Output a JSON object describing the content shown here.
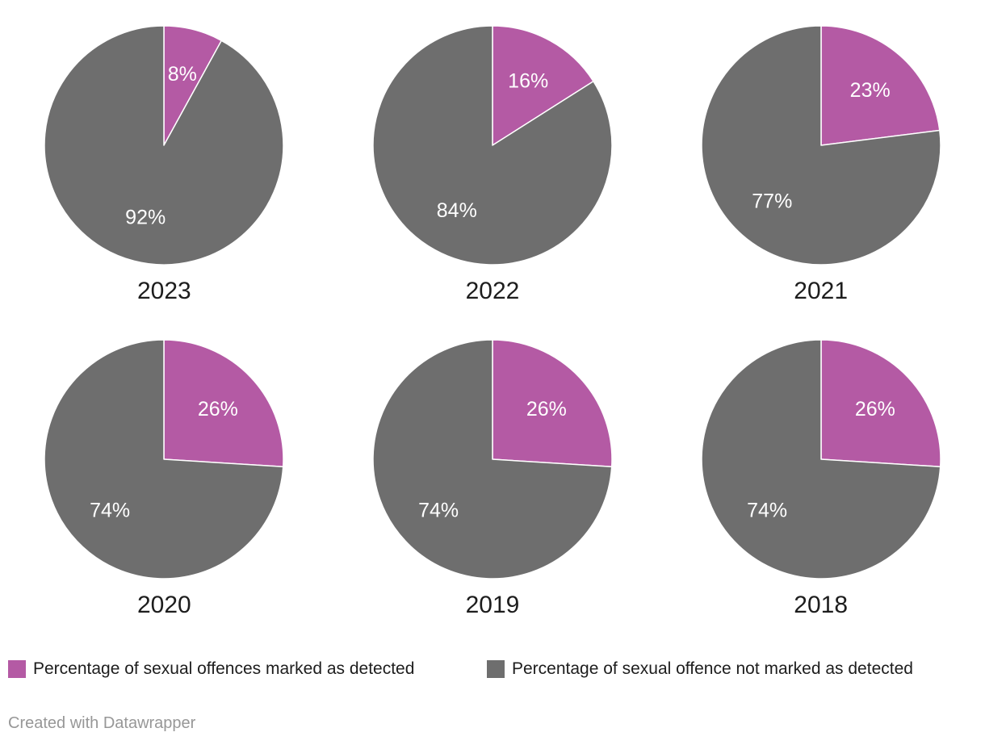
{
  "chart_data": {
    "type": "pie",
    "title": "",
    "layout": "small multiples, 3 columns x 2 rows",
    "slice_start": "12 o'clock, clockwise, detected slice first",
    "series": [
      {
        "name": "Percentage of sexual offences marked as detected",
        "color": "#b45aa4"
      },
      {
        "name": "Percentage of sexual offence not marked as detected",
        "color": "#6e6e6e"
      }
    ],
    "pies": [
      {
        "label": "2023",
        "values": [
          8,
          92
        ],
        "data_labels": [
          "8%",
          "92%"
        ]
      },
      {
        "label": "2022",
        "values": [
          16,
          84
        ],
        "data_labels": [
          "16%",
          "84%"
        ]
      },
      {
        "label": "2021",
        "values": [
          23,
          77
        ],
        "data_labels": [
          "23%",
          "77%"
        ]
      },
      {
        "label": "2020",
        "values": [
          26,
          74
        ],
        "data_labels": [
          "26%",
          "74%"
        ]
      },
      {
        "label": "2019",
        "values": [
          26,
          74
        ],
        "data_labels": [
          "26%",
          "74%"
        ]
      },
      {
        "label": "2018",
        "values": [
          26,
          74
        ],
        "data_labels": [
          "26%",
          "74%"
        ]
      }
    ]
  },
  "legend": {
    "items": [
      {
        "label": "Percentage of sexual offences marked as detected",
        "color": "#b45aa4"
      },
      {
        "label": "Percentage of sexual offence not marked as detected",
        "color": "#6e6e6e"
      }
    ]
  },
  "footer": {
    "credit": "Created with Datawrapper"
  },
  "colors": {
    "detected": "#b45aa4",
    "not_detected": "#6e6e6e",
    "slice_label_text": "#ffffff",
    "slice_border": "#ffffff",
    "year_text": "#1d1d1d",
    "legend_text": "#1d1d1d",
    "footer_text": "#979797",
    "background": "#ffffff"
  }
}
